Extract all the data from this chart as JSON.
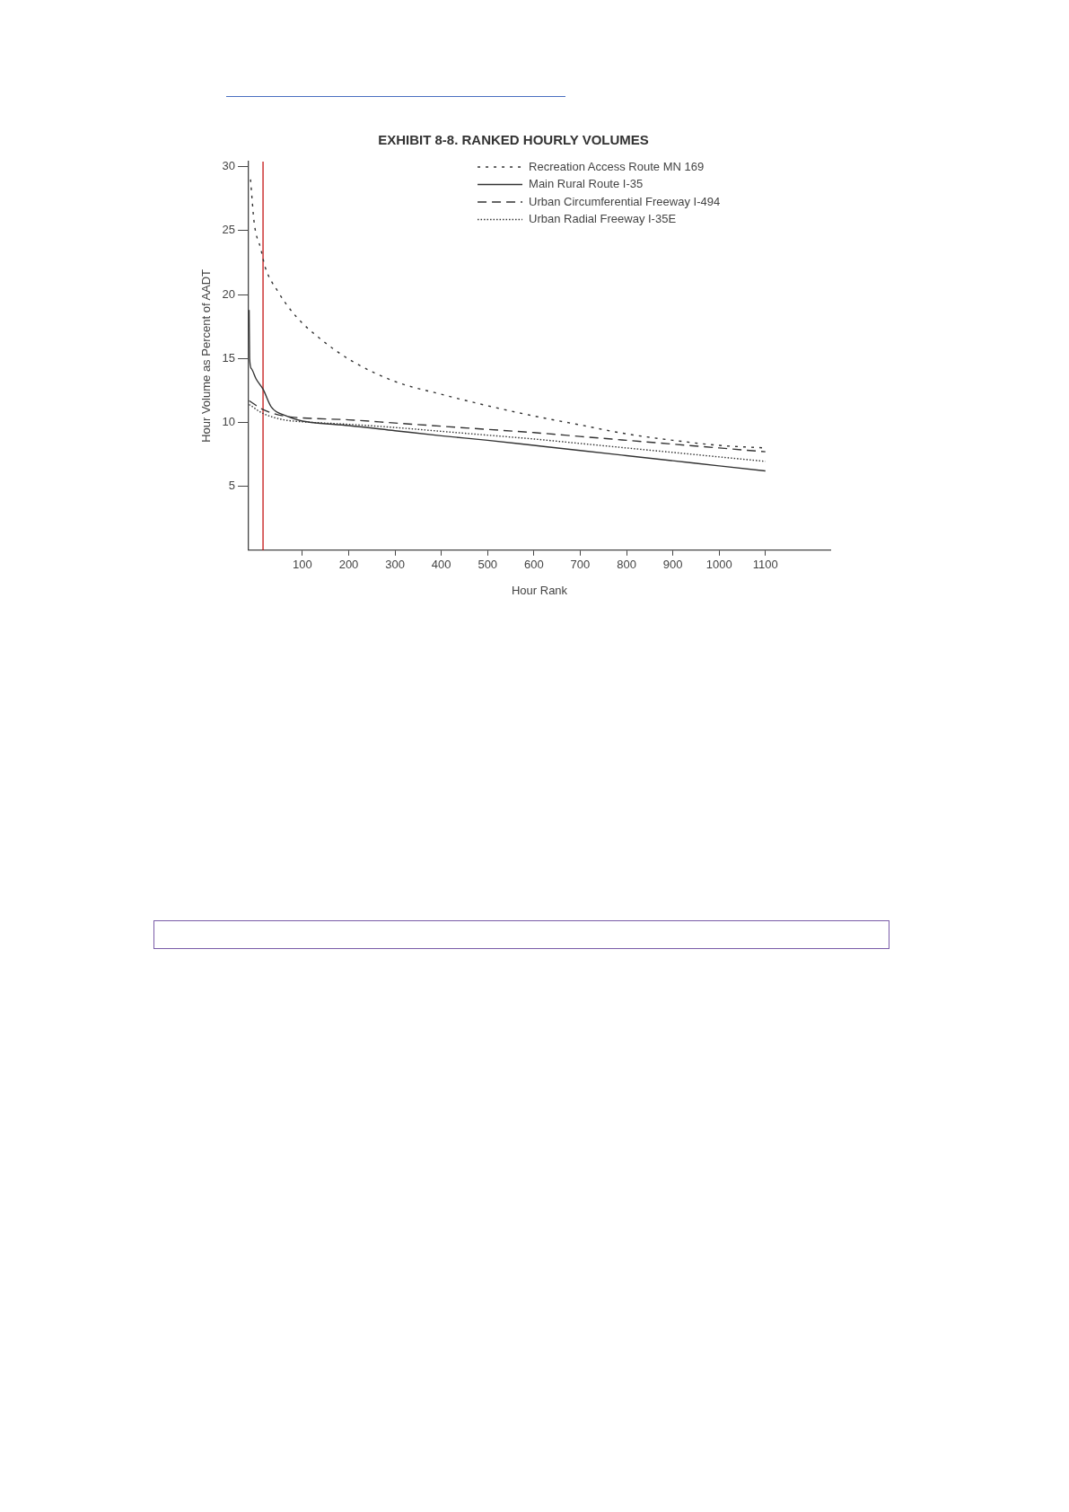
{
  "chart_data": {
    "type": "line",
    "title": "EXHIBIT 8-8. RANKED HOURLY VOLUMES",
    "xlabel": "Hour Rank",
    "ylabel": "Hour Volume as Percent of AADT",
    "xlim": [
      -16,
      1240
    ],
    "xticks": [
      100,
      200,
      300,
      400,
      500,
      600,
      700,
      800,
      900,
      1000,
      1100
    ],
    "ylim": [
      0,
      30.4
    ],
    "yticks": [
      5,
      10,
      15,
      20,
      25,
      30
    ],
    "grid": false,
    "legend": "top right",
    "marker": "none",
    "ref_lines": [
      {
        "axis": "x",
        "value": 15,
        "color": "#c00000"
      }
    ],
    "series": [
      {
        "name": "Recreation Access Route MN 169",
        "color": "#333333",
        "line_style": "dashed",
        "x": [
          -12,
          -4,
          10,
          20,
          46,
          86,
          140,
          207,
          300,
          400,
          500,
          600,
          700,
          800,
          900,
          1000,
          1100
        ],
        "values": [
          29.0,
          25.6,
          23.6,
          22.1,
          20.3,
          18.3,
          16.5,
          14.8,
          13.2,
          12.2,
          11.3,
          10.5,
          9.8,
          9.1,
          8.6,
          8.2,
          8.0
        ]
      },
      {
        "name": "Main Rural Route I-35",
        "color": "#333333",
        "line_style": "solid",
        "x": [
          -15,
          -14,
          -10,
          0,
          15,
          33,
          66,
          100,
          120,
          200,
          300,
          400,
          500,
          600,
          700,
          800,
          900,
          1000,
          1100
        ],
        "values": [
          18.8,
          15.0,
          14.2,
          13.4,
          12.6,
          11.2,
          10.5,
          10.1,
          10.0,
          9.75,
          9.35,
          8.95,
          8.6,
          8.2,
          7.8,
          7.4,
          7.0,
          6.6,
          6.2
        ]
      },
      {
        "name": "Urban Circumferential Freeway I-494",
        "color": "#333333",
        "line_style": "dashed",
        "x": [
          -15,
          15,
          60,
          100,
          200,
          300,
          400,
          500,
          600,
          700,
          800,
          900,
          1000,
          1100
        ],
        "values": [
          11.7,
          11.0,
          10.5,
          10.35,
          10.2,
          9.95,
          9.7,
          9.45,
          9.2,
          8.9,
          8.6,
          8.3,
          8.0,
          7.7
        ]
      },
      {
        "name": "Urban Radial Freeway I-35E",
        "color": "#333333",
        "line_style": "dotted",
        "x": [
          -15,
          15,
          60,
          100,
          200,
          300,
          400,
          500,
          600,
          700,
          800,
          900,
          1000,
          1100
        ],
        "values": [
          11.4,
          10.7,
          10.2,
          10.05,
          9.85,
          9.6,
          9.3,
          9.0,
          8.7,
          8.35,
          8.0,
          7.65,
          7.3,
          6.95
        ]
      }
    ]
  }
}
